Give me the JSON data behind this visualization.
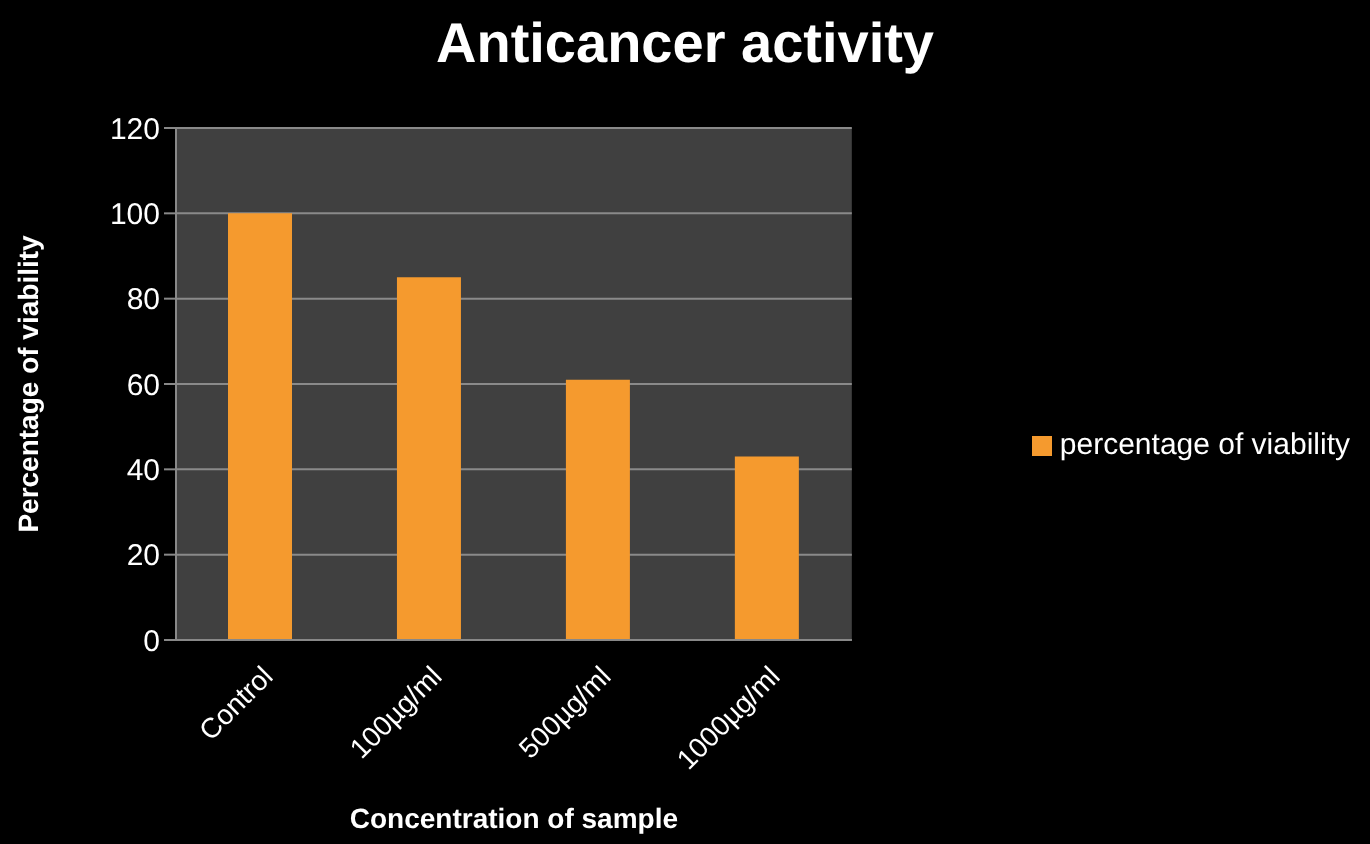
{
  "chart_data": {
    "type": "bar",
    "title": "Anticancer activity",
    "xlabel": "Concentration of sample",
    "ylabel": "Percentage of viability",
    "categories": [
      "Control",
      "100µg/ml",
      "500µg/ml",
      "1000µg/ml"
    ],
    "series": [
      {
        "name": "percentage of viability",
        "color": "#f59a2e",
        "values": [
          100,
          85,
          61,
          43
        ]
      }
    ],
    "ylim": [
      0,
      120
    ],
    "yticks": [
      0,
      20,
      40,
      60,
      80,
      100,
      120
    ],
    "grid": "y",
    "legend": "right"
  }
}
